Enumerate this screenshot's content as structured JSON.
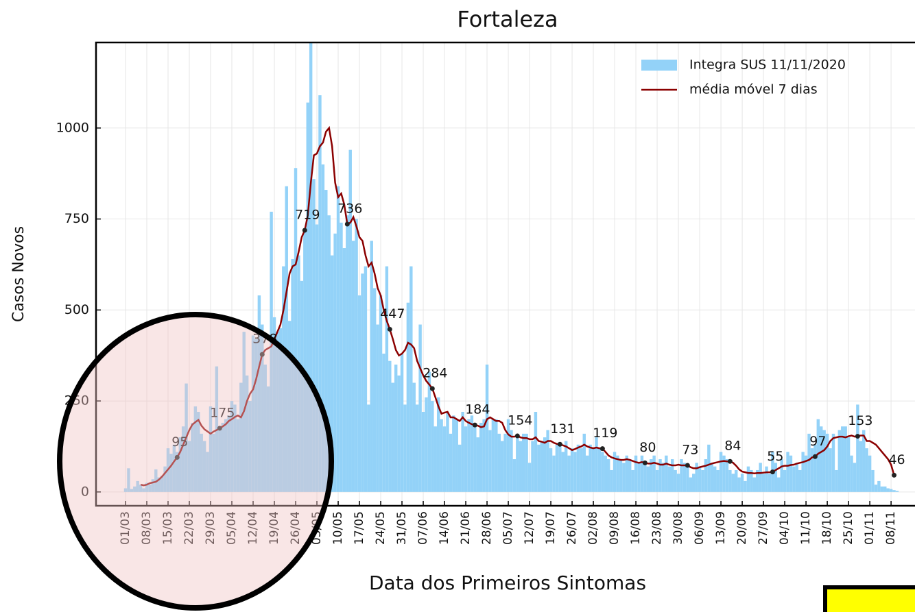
{
  "chart_data": {
    "type": "bar",
    "title": "Fortaleza",
    "x_label": "Data dos Primeiros Sintomas",
    "y_label": "Casos Novos",
    "categories": [
      "01/03",
      null,
      null,
      null,
      null,
      null,
      null,
      "08/03",
      null,
      null,
      null,
      null,
      null,
      null,
      "15/03",
      null,
      null,
      null,
      null,
      null,
      null,
      "22/03",
      null,
      null,
      null,
      null,
      null,
      null,
      "29/03",
      null,
      null,
      null,
      null,
      null,
      null,
      "05/04",
      null,
      null,
      null,
      null,
      null,
      null,
      "12/04",
      null,
      null,
      null,
      null,
      null,
      null,
      "19/04",
      null,
      null,
      null,
      null,
      null,
      null,
      "26/04",
      null,
      null,
      null,
      null,
      null,
      null,
      "03/05",
      null,
      null,
      null,
      null,
      null,
      null,
      "10/05",
      null,
      null,
      null,
      null,
      null,
      null,
      "17/05",
      null,
      null,
      null,
      null,
      null,
      null,
      "24/05",
      null,
      null,
      null,
      null,
      null,
      null,
      "31/05",
      null,
      null,
      null,
      null,
      null,
      null,
      "07/06",
      null,
      null,
      null,
      null,
      null,
      null,
      "14/06",
      null,
      null,
      null,
      null,
      null,
      null,
      "21/06",
      null,
      null,
      null,
      null,
      null,
      null,
      "28/06",
      null,
      null,
      null,
      null,
      null,
      null,
      "05/07",
      null,
      null,
      null,
      null,
      null,
      null,
      "12/07",
      null,
      null,
      null,
      null,
      null,
      null,
      "19/07",
      null,
      null,
      null,
      null,
      null,
      null,
      "26/07",
      null,
      null,
      null,
      null,
      null,
      null,
      "02/08",
      null,
      null,
      null,
      null,
      null,
      null,
      "09/08",
      null,
      null,
      null,
      null,
      null,
      null,
      "16/08",
      null,
      null,
      null,
      null,
      null,
      null,
      "23/08",
      null,
      null,
      null,
      null,
      null,
      null,
      "30/08",
      null,
      null,
      null,
      null,
      null,
      null,
      "06/09",
      null,
      null,
      null,
      null,
      null,
      null,
      "13/09",
      null,
      null,
      null,
      null,
      null,
      null,
      "20/09",
      null,
      null,
      null,
      null,
      null,
      null,
      "27/09",
      null,
      null,
      null,
      null,
      null,
      null,
      "04/10",
      null,
      null,
      null,
      null,
      null,
      null,
      "11/10",
      null,
      null,
      null,
      null,
      null,
      null,
      "18/10",
      null,
      null,
      null,
      null,
      null,
      null,
      "25/10",
      null,
      null,
      null,
      null,
      null,
      null,
      "01/11",
      null,
      null,
      null,
      null,
      null,
      null,
      "08/11",
      null,
      null
    ],
    "series": [
      {
        "name": "Integra SUS 11/11/2020",
        "color": "#93d2f8",
        "values": [
          10,
          65,
          8,
          15,
          30,
          20,
          10,
          25,
          20,
          35,
          62,
          40,
          45,
          70,
          120,
          105,
          130,
          110,
          150,
          180,
          298,
          140,
          190,
          235,
          220,
          160,
          140,
          110,
          235,
          160,
          345,
          175,
          190,
          200,
          210,
          250,
          240,
          200,
          300,
          440,
          320,
          250,
          430,
          420,
          540,
          460,
          350,
          290,
          770,
          480,
          440,
          450,
          620,
          840,
          470,
          640,
          890,
          650,
          580,
          720,
          1070,
          1235,
          860,
          735,
          1090,
          900,
          830,
          760,
          650,
          710,
          840,
          740,
          670,
          760,
          940,
          690,
          750,
          540,
          600,
          620,
          240,
          690,
          560,
          460,
          540,
          380,
          620,
          360,
          300,
          350,
          320,
          380,
          240,
          520,
          620,
          300,
          240,
          460,
          220,
          260,
          330,
          250,
          180,
          260,
          200,
          180,
          220,
          160,
          210,
          200,
          130,
          220,
          180,
          200,
          210,
          190,
          150,
          190,
          200,
          350,
          170,
          200,
          200,
          160,
          140,
          160,
          200,
          170,
          90,
          150,
          140,
          160,
          160,
          80,
          140,
          220,
          130,
          140,
          150,
          170,
          120,
          100,
          130,
          130,
          110,
          140,
          100,
          120,
          110,
          130,
          120,
          160,
          100,
          130,
          120,
          150,
          120,
          110,
          100,
          90,
          60,
          110,
          100,
          90,
          80,
          100,
          90,
          60,
          100,
          80,
          100,
          80,
          70,
          90,
          100,
          60,
          90,
          80,
          100,
          70,
          90,
          60,
          50,
          90,
          80,
          70,
          40,
          50,
          80,
          70,
          60,
          90,
          130,
          80,
          70,
          60,
          110,
          100,
          90,
          60,
          50,
          60,
          40,
          50,
          30,
          70,
          60,
          40,
          60,
          80,
          50,
          70,
          50,
          110,
          80,
          40,
          90,
          60,
          110,
          100,
          70,
          80,
          60,
          110,
          100,
          160,
          120,
          130,
          200,
          180,
          170,
          160,
          120,
          160,
          60,
          170,
          180,
          180,
          150,
          100,
          80,
          240,
          140,
          170,
          120,
          100,
          60,
          20,
          30,
          15,
          15,
          10,
          8,
          5,
          3
        ]
      },
      {
        "name": "média móvel 7 dias",
        "color": "#8b0000",
        "type": "line",
        "values": [
          null,
          null,
          null,
          null,
          null,
          20,
          18,
          20,
          24,
          26,
          28,
          34,
          42,
          52,
          62,
          72,
          84,
          95,
          110,
          130,
          150,
          170,
          185,
          192,
          198,
          182,
          172,
          166,
          160,
          166,
          170,
          175,
          180,
          186,
          195,
          200,
          206,
          210,
          205,
          222,
          250,
          270,
          282,
          310,
          345,
          378,
          390,
          395,
          400,
          420,
          440,
          460,
          500,
          550,
          600,
          620,
          625,
          660,
          700,
          719,
          760,
          850,
          925,
          930,
          950,
          960,
          990,
          1000,
          950,
          850,
          810,
          820,
          790,
          736,
          740,
          755,
          730,
          700,
          690,
          650,
          620,
          630,
          600,
          560,
          540,
          500,
          470,
          447,
          420,
          390,
          375,
          380,
          390,
          410,
          405,
          395,
          360,
          340,
          320,
          305,
          295,
          284,
          260,
          235,
          215,
          218,
          220,
          205,
          205,
          200,
          195,
          205,
          195,
          190,
          186,
          184,
          182,
          178,
          180,
          200,
          205,
          200,
          195,
          195,
          190,
          170,
          158,
          152,
          152,
          154,
          150,
          148,
          148,
          145,
          145,
          150,
          140,
          138,
          135,
          140,
          140,
          135,
          132,
          131,
          128,
          125,
          120,
          115,
          118,
          122,
          125,
          130,
          125,
          122,
          120,
          122,
          120,
          119,
          110,
          100,
          95,
          92,
          90,
          88,
          88,
          90,
          88,
          85,
          82,
          80,
          82,
          80,
          78,
          78,
          80,
          78,
          75,
          75,
          78,
          75,
          73,
          73,
          75,
          73,
          73,
          73,
          68,
          65,
          65,
          68,
          70,
          72,
          75,
          78,
          80,
          82,
          84,
          85,
          84,
          84,
          80,
          72,
          62,
          56,
          54,
          52,
          52,
          51,
          52,
          52,
          53,
          54,
          54,
          55,
          60,
          65,
          70,
          72,
          72,
          74,
          75,
          78,
          80,
          82,
          85,
          88,
          95,
          97,
          105,
          110,
          115,
          125,
          140,
          148,
          150,
          152,
          152,
          150,
          153,
          155,
          152,
          153,
          155,
          155,
          140,
          140,
          135,
          130,
          120,
          110,
          100,
          90,
          75,
          46,
          null
        ],
        "value_labels": [
          null,
          null,
          null,
          null,
          null,
          null,
          null,
          null,
          null,
          null,
          null,
          null,
          null,
          null,
          null,
          null,
          null,
          "95",
          null,
          null,
          null,
          null,
          null,
          null,
          null,
          null,
          null,
          null,
          null,
          null,
          null,
          "175",
          null,
          null,
          null,
          null,
          null,
          null,
          null,
          null,
          null,
          null,
          null,
          null,
          null,
          "378",
          null,
          null,
          null,
          null,
          null,
          null,
          null,
          null,
          null,
          null,
          null,
          null,
          null,
          "719",
          null,
          null,
          null,
          null,
          null,
          null,
          null,
          null,
          null,
          null,
          null,
          null,
          null,
          "736",
          null,
          null,
          null,
          null,
          null,
          null,
          null,
          null,
          null,
          null,
          null,
          null,
          null,
          "447",
          null,
          null,
          null,
          null,
          null,
          null,
          null,
          null,
          null,
          null,
          null,
          null,
          null,
          "284",
          null,
          null,
          null,
          null,
          null,
          null,
          null,
          null,
          null,
          null,
          null,
          null,
          null,
          "184",
          null,
          null,
          null,
          null,
          null,
          null,
          null,
          null,
          null,
          null,
          null,
          null,
          null,
          "154",
          null,
          null,
          null,
          null,
          null,
          null,
          null,
          null,
          null,
          null,
          null,
          null,
          null,
          "131",
          null,
          null,
          null,
          null,
          null,
          null,
          null,
          null,
          null,
          null,
          null,
          null,
          null,
          "119",
          null,
          null,
          null,
          null,
          null,
          null,
          null,
          null,
          null,
          null,
          null,
          null,
          null,
          "80",
          null,
          null,
          null,
          null,
          null,
          null,
          null,
          null,
          null,
          null,
          null,
          null,
          null,
          "73",
          null,
          null,
          null,
          null,
          null,
          null,
          null,
          null,
          null,
          null,
          null,
          null,
          null,
          "84",
          null,
          null,
          null,
          null,
          null,
          null,
          null,
          null,
          null,
          null,
          null,
          null,
          null,
          "55",
          null,
          null,
          null,
          null,
          null,
          null,
          null,
          null,
          null,
          null,
          null,
          null,
          null,
          "97",
          null,
          null,
          null,
          null,
          null,
          null,
          null,
          null,
          null,
          null,
          null,
          null,
          null,
          "153",
          null,
          null,
          null,
          null,
          null,
          null,
          null,
          null,
          null,
          null,
          null,
          "46",
          null
        ]
      }
    ],
    "ylim": [
      -38,
      1235
    ],
    "yticks": [
      0,
      250,
      500,
      750,
      1000
    ],
    "grid": true,
    "legend": "upper right"
  }
}
